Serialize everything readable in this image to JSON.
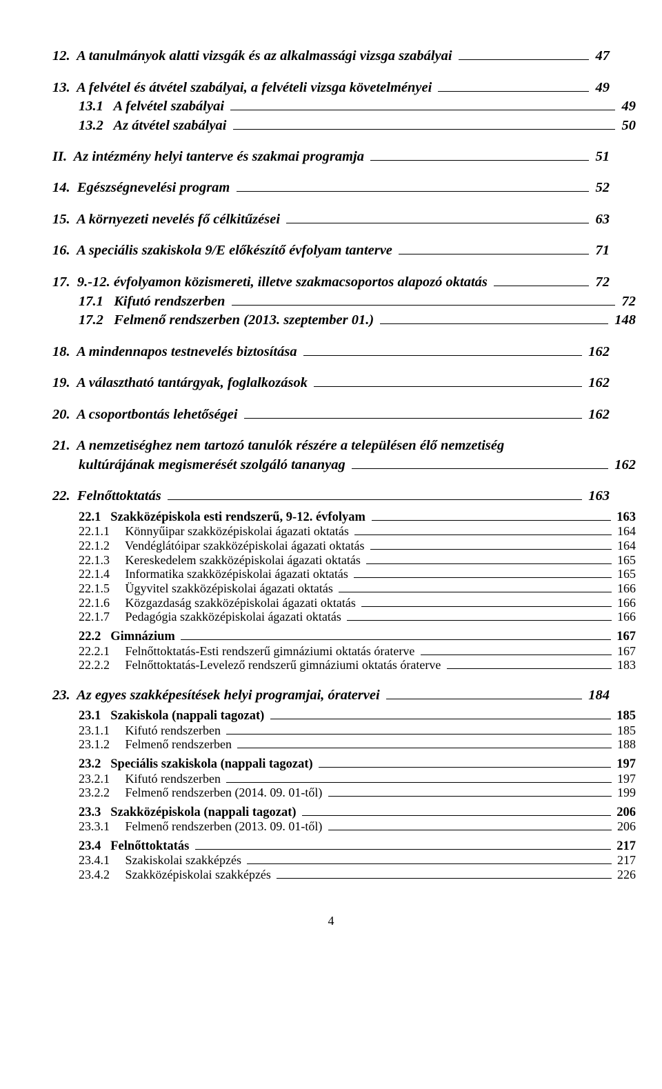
{
  "page_number": "4",
  "entries": [
    {
      "cls": "lvl1",
      "num": "12.",
      "text": "A tanulmányok alatti vizsgák és az alkalmassági vizsga szabályai",
      "page": "47"
    },
    {
      "cls": "lvl1",
      "num": "13.",
      "text": "A felvétel és átvétel szabályai, a felvételi vizsga követelményei",
      "page": "49"
    },
    {
      "cls": "lvl1sub",
      "num": "13.1",
      "text": "A felvétel szabályai",
      "page": "49"
    },
    {
      "cls": "lvl1sub",
      "num": "13.2",
      "text": "Az átvétel szabályai",
      "page": "50"
    },
    {
      "cls": "roman",
      "num": "II.",
      "text": "Az intézmény helyi tanterve és szakmai programja",
      "page": "51"
    },
    {
      "cls": "lvl1",
      "num": "14.",
      "text": "Egészségnevelési program",
      "page": "52"
    },
    {
      "cls": "lvl1",
      "num": "15.",
      "text": "A környezeti nevelés fő célkitűzései",
      "page": "63"
    },
    {
      "cls": "lvl1",
      "num": "16.",
      "text": "A speciális szakiskola 9/E előkészítő évfolyam tanterve",
      "page": "71"
    },
    {
      "cls": "lvl1",
      "num": "17.",
      "text": "9.-12. évfolyamon közismereti, illetve szakmacsoportos alapozó oktatás",
      "page": "72"
    },
    {
      "cls": "lvl1sub",
      "num": "17.1",
      "text": "Kifutó rendszerben",
      "page": "72"
    },
    {
      "cls": "lvl1sub",
      "num": "17.2",
      "text": "Felmenő rendszerben (2013. szeptember 01.)",
      "page": "148"
    },
    {
      "cls": "lvl1",
      "num": "18.",
      "text": "A mindennapos testnevelés biztosítása",
      "page": "162"
    },
    {
      "cls": "lvl1",
      "num": "19.",
      "text": "A választható tantárgyak, foglalkozások",
      "page": "162"
    },
    {
      "cls": "lvl1",
      "num": "20.",
      "text": "A csoportbontás lehetőségei",
      "page": "162"
    },
    {
      "cls": "lvl1-wrap",
      "num": "21.",
      "line1": "A nemzetiséghez nem tartozó tanulók részére a településen élő nemzetiség",
      "line2": "kultúrájának megismerését szolgáló tananyag",
      "page": "162"
    },
    {
      "cls": "lvl1",
      "num": "22.",
      "text": "Felnőttoktatás",
      "page": "163"
    },
    {
      "cls": "lvl2",
      "num": "22.1",
      "text": "Szakközépiskola esti rendszerű, 9-12. évfolyam",
      "page": "163"
    },
    {
      "cls": "lvl3",
      "num": "22.1.1",
      "text": "Könnyűipar szakközépiskolai ágazati oktatás",
      "page": "164"
    },
    {
      "cls": "lvl3",
      "num": "22.1.2",
      "text": "Vendéglátóipar szakközépiskolai ágazati oktatás",
      "page": "164"
    },
    {
      "cls": "lvl3",
      "num": "22.1.3",
      "text": "Kereskedelem szakközépiskolai ágazati oktatás",
      "page": "165"
    },
    {
      "cls": "lvl3",
      "num": "22.1.4",
      "text": "Informatika szakközépiskolai ágazati oktatás",
      "page": "165"
    },
    {
      "cls": "lvl3",
      "num": "22.1.5",
      "text": "Ügyvitel szakközépiskolai ágazati oktatás",
      "page": "166"
    },
    {
      "cls": "lvl3",
      "num": "22.1.6",
      "text": "Közgazdaság szakközépiskolai ágazati oktatás",
      "page": "166"
    },
    {
      "cls": "lvl3",
      "num": "22.1.7",
      "text": "Pedagógia szakközépiskolai ágazati oktatás",
      "page": "166"
    },
    {
      "cls": "lvl2",
      "num": "22.2",
      "text": "Gimnázium",
      "page": "167"
    },
    {
      "cls": "lvl3",
      "num": "22.2.1",
      "text": "Felnőttoktatás-Esti rendszerű gimnáziumi oktatás óraterve",
      "page": "167"
    },
    {
      "cls": "lvl3",
      "num": "22.2.2",
      "text": "Felnőttoktatás-Levelező rendszerű gimnáziumi oktatás óraterve",
      "page": "183"
    },
    {
      "cls": "lvl1",
      "num": "23.",
      "text": "Az egyes szakképesítések helyi programjai, óratervei",
      "page": "184"
    },
    {
      "cls": "lvl2",
      "num": "23.1",
      "text": "Szakiskola (nappali tagozat)",
      "page": "185"
    },
    {
      "cls": "lvl3",
      "num": "23.1.1",
      "text": "Kifutó rendszerben",
      "page": "185"
    },
    {
      "cls": "lvl3",
      "num": "23.1.2",
      "text": "Felmenő rendszerben",
      "page": "188"
    },
    {
      "cls": "lvl2",
      "num": "23.2",
      "text": "Speciális szakiskola (nappali tagozat)",
      "page": "197"
    },
    {
      "cls": "lvl3",
      "num": "23.2.1",
      "text": "Kifutó rendszerben",
      "page": "197"
    },
    {
      "cls": "lvl3",
      "num": "23.2.2",
      "text": "Felmenő rendszerben (2014. 09. 01-től)",
      "page": "199"
    },
    {
      "cls": "lvl2",
      "num": "23.3",
      "text": "Szakközépiskola (nappali tagozat)",
      "page": "206"
    },
    {
      "cls": "lvl3",
      "num": "23.3.1",
      "text": "Felmenő rendszerben (2013. 09. 01-től)",
      "page": "206"
    },
    {
      "cls": "lvl2",
      "num": "23.4",
      "text": "Felnőttoktatás",
      "page": "217"
    },
    {
      "cls": "lvl3",
      "num": "23.4.1",
      "text": "Szakiskolai szakképzés",
      "page": "217"
    },
    {
      "cls": "lvl3",
      "num": "23.4.2",
      "text": "Szakközépiskolai szakképzés",
      "page": "226"
    }
  ]
}
